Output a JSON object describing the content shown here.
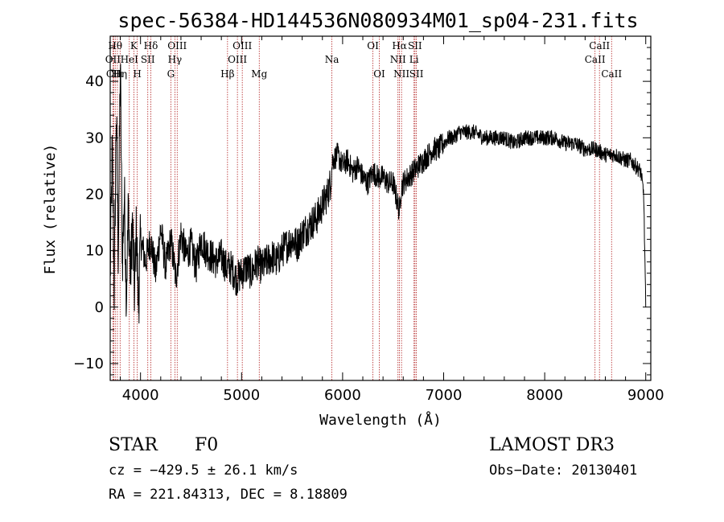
{
  "chart_data": {
    "type": "line",
    "title": "spec-56384-HD144536N080934M01_sp04-231.fits",
    "xlabel": "Wavelength (Å)",
    "ylabel": "Flux (relative)",
    "xlim": [
      3700,
      9050
    ],
    "ylim": [
      -13,
      48
    ],
    "x_ticks": [
      4000,
      5000,
      6000,
      7000,
      8000,
      9000
    ],
    "y_ticks": [
      -10,
      0,
      10,
      20,
      30,
      40
    ],
    "grid": false,
    "series": [
      {
        "values_x": [
          3700,
          3720,
          3740,
          3760,
          3780,
          3800,
          3820,
          3840,
          3860,
          3880,
          3900,
          3920,
          3940,
          3960,
          3980,
          4000,
          4050,
          4100,
          4150,
          4200,
          4250,
          4300,
          4350,
          4400,
          4450,
          4500,
          4550,
          4600,
          4650,
          4700,
          4750,
          4800,
          4850,
          4900,
          4950,
          5000,
          5050,
          5100,
          5150,
          5200,
          5250,
          5300,
          5350,
          5400,
          5450,
          5500,
          5550,
          5600,
          5650,
          5700,
          5750,
          5800,
          5850,
          5880,
          5900,
          5950,
          6000,
          6050,
          6100,
          6150,
          6200,
          6250,
          6300,
          6350,
          6400,
          6450,
          6500,
          6550,
          6563,
          6580,
          6600,
          6650,
          6700,
          6750,
          6800,
          6850,
          6900,
          6950,
          7000,
          7050,
          7100,
          7150,
          7200,
          7300,
          7400,
          7500,
          7600,
          7700,
          7800,
          7900,
          8000,
          8100,
          8200,
          8300,
          8400,
          8500,
          8600,
          8700,
          8800,
          8850,
          8900,
          8950,
          8980,
          9000
        ],
        "values_y": [
          5,
          28,
          3,
          35,
          10,
          43,
          8,
          20,
          2,
          18,
          5,
          15,
          3,
          14,
          0,
          12,
          8,
          12,
          6,
          14,
          7,
          12,
          5,
          13,
          9,
          11,
          7,
          12,
          10,
          9,
          8,
          9,
          7,
          7,
          5,
          6,
          7,
          6,
          8,
          7,
          8,
          9,
          8,
          10,
          11,
          12,
          11,
          13,
          14,
          15,
          16,
          18,
          20,
          22,
          26,
          27,
          25,
          26,
          24,
          25,
          23,
          22,
          24,
          23,
          23,
          22,
          22,
          18,
          17,
          21,
          22,
          23,
          24,
          25,
          26,
          27,
          28,
          28,
          29,
          30,
          30,
          31,
          31,
          31,
          30,
          30,
          30,
          29,
          30,
          30,
          30,
          30,
          29,
          29,
          28,
          28,
          27,
          27,
          26,
          26,
          25,
          24,
          20,
          0
        ]
      }
    ],
    "line_markers": [
      {
        "wavelength": 3727,
        "label": "OII",
        "row": 1
      },
      {
        "wavelength": 3734,
        "label": "CII",
        "row": 2
      },
      {
        "wavelength": 3750,
        "label": "Hθ",
        "row": 0
      },
      {
        "wavelength": 3771,
        "label": "Hι",
        "row": 2
      },
      {
        "wavelength": 3798,
        "label": "Hη",
        "row": 2
      },
      {
        "wavelength": 3889,
        "label": "HeI",
        "row": 1
      },
      {
        "wavelength": 3934,
        "label": "K",
        "row": 0
      },
      {
        "wavelength": 3968,
        "label": "H",
        "row": 2
      },
      {
        "wavelength": 4072,
        "label": "SII",
        "row": 1
      },
      {
        "wavelength": 4102,
        "label": "Hδ",
        "row": 0
      },
      {
        "wavelength": 4300,
        "label": "G",
        "row": 2
      },
      {
        "wavelength": 4340,
        "label": "Hγ",
        "row": 1
      },
      {
        "wavelength": 4363,
        "label": "OIII",
        "row": 0
      },
      {
        "wavelength": 4861,
        "label": "Hβ",
        "row": 2
      },
      {
        "wavelength": 4959,
        "label": "OIII",
        "row": 1
      },
      {
        "wavelength": 5007,
        "label": "OIII",
        "row": 0
      },
      {
        "wavelength": 5175,
        "label": "Mg",
        "row": 2
      },
      {
        "wavelength": 5894,
        "label": "Na",
        "row": 1
      },
      {
        "wavelength": 6300,
        "label": "OI",
        "row": 0
      },
      {
        "wavelength": 6363,
        "label": "OI",
        "row": 2
      },
      {
        "wavelength": 6548,
        "label": "NII",
        "row": 1
      },
      {
        "wavelength": 6563,
        "label": "Hα",
        "row": 0
      },
      {
        "wavelength": 6583,
        "label": "NII",
        "row": 2
      },
      {
        "wavelength": 6707,
        "label": "Li",
        "row": 1
      },
      {
        "wavelength": 6716,
        "label": "SII",
        "row": 0
      },
      {
        "wavelength": 6730,
        "label": "SII",
        "row": 2
      },
      {
        "wavelength": 8498,
        "label": "CaII",
        "row": 1
      },
      {
        "wavelength": 8542,
        "label": "CaII",
        "row": 0
      },
      {
        "wavelength": 8662,
        "label": "CaII",
        "row": 2
      }
    ]
  },
  "info": {
    "class_label": "STAR",
    "subclass_label": "F0",
    "survey_label": "LAMOST DR3",
    "cz_text": "cz = −429.5 ± 26.1 km/s",
    "obs_date_text": "Obs−Date: 20130401",
    "radec_text": "RA = 221.84313, DEC =   8.18809"
  },
  "colors": {
    "spectrum": "#000000",
    "marker_lines": "#b22222",
    "axes": "#000000"
  }
}
